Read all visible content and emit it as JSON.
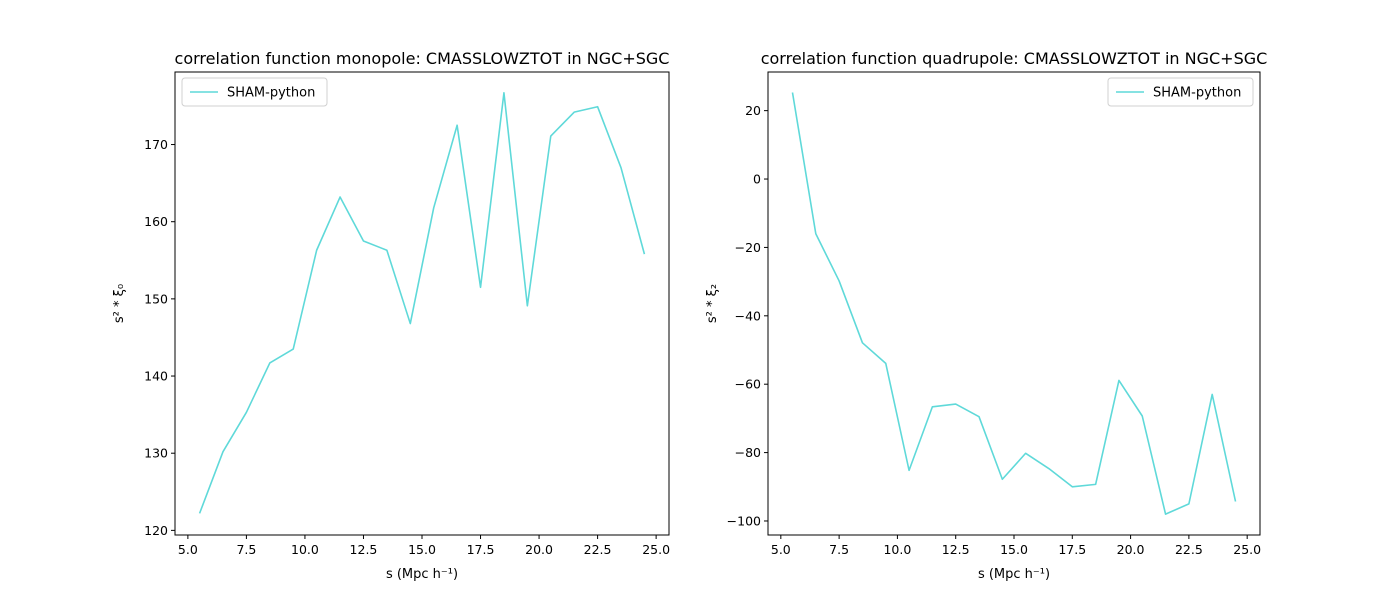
{
  "chart_data": [
    {
      "type": "line",
      "title": "correlation function monopole: CMASSLOWZTOT in NGC+SGC",
      "xlabel": "s (Mpc h⁻¹)",
      "ylabel": "s² * ξ₀",
      "xlim": [
        4.45,
        25.55
      ],
      "ylim": [
        119.4,
        179.4
      ],
      "xticks": [
        5.0,
        7.5,
        10.0,
        12.5,
        15.0,
        17.5,
        20.0,
        22.5,
        25.0
      ],
      "xtick_labels": [
        "5.0",
        "7.5",
        "10.0",
        "12.5",
        "15.0",
        "17.5",
        "20.0",
        "22.5",
        "25.0"
      ],
      "yticks": [
        120,
        130,
        140,
        150,
        160,
        170
      ],
      "ytick_labels": [
        "120",
        "130",
        "140",
        "150",
        "160",
        "170"
      ],
      "grid": false,
      "legend_position": "upper-left",
      "series": [
        {
          "name": "SHAM-python",
          "color": "#5fd9d9",
          "x": [
            5.5,
            6.5,
            7.5,
            8.5,
            9.5,
            10.5,
            11.5,
            12.5,
            13.5,
            14.5,
            15.5,
            16.5,
            17.5,
            18.5,
            19.5,
            20.5,
            21.5,
            22.5,
            23.5,
            24.5
          ],
          "y": [
            122.2,
            130.2,
            135.3,
            141.7,
            143.5,
            156.3,
            163.2,
            157.5,
            156.3,
            146.8,
            161.8,
            172.5,
            151.5,
            176.7,
            149.1,
            171.1,
            174.2,
            174.9,
            167.0,
            155.8
          ]
        }
      ]
    },
    {
      "type": "line",
      "title": "correlation function quadrupole: CMASSLOWZTOT in NGC+SGC",
      "xlabel": "s (Mpc h⁻¹)",
      "ylabel": "s² * ξ₂",
      "xlim": [
        4.45,
        25.55
      ],
      "ylim": [
        -104.1,
        31.3
      ],
      "xticks": [
        5.0,
        7.5,
        10.0,
        12.5,
        15.0,
        17.5,
        20.0,
        22.5,
        25.0
      ],
      "xtick_labels": [
        "5.0",
        "7.5",
        "10.0",
        "12.5",
        "15.0",
        "17.5",
        "20.0",
        "22.5",
        "25.0"
      ],
      "yticks": [
        -100,
        -80,
        -60,
        -40,
        -20,
        0,
        20
      ],
      "ytick_labels": [
        "−100",
        "−80",
        "−60",
        "−40",
        "−20",
        "0",
        "20"
      ],
      "grid": false,
      "legend_position": "upper-right",
      "series": [
        {
          "name": "SHAM-python",
          "color": "#5fd9d9",
          "x": [
            5.5,
            6.5,
            7.5,
            8.5,
            9.5,
            10.5,
            11.5,
            12.5,
            13.5,
            14.5,
            15.5,
            16.5,
            17.5,
            18.5,
            19.5,
            20.5,
            21.5,
            22.5,
            23.5,
            24.5
          ],
          "y": [
            25.3,
            -16.0,
            -29.8,
            -47.9,
            -53.9,
            -85.2,
            -66.6,
            -65.8,
            -69.5,
            -87.8,
            -80.2,
            -84.7,
            -90.0,
            -89.3,
            -58.9,
            -69.3,
            -98.0,
            -95.0,
            -63.0,
            -94.3
          ]
        }
      ]
    }
  ]
}
